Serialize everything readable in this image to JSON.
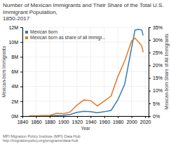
{
  "chart_data": {
    "type": "line",
    "title": "Number of Mexican Immigrants and Their Share of the Total U.S. Immigrant Population,\n1850-2017",
    "xlabel": "Year",
    "ylabel": "Mexican-born Immigrants",
    "y2label": "Mexican-born Share of All Immigrants",
    "annotations": [
      "MPI  Migration Policy Institute (MPI) Data Hub",
      "http://migrationpolicy.org/programs/data-hub"
    ],
    "x": [
      1850,
      1860,
      1870,
      1880,
      1890,
      1900,
      1910,
      1920,
      1930,
      1940,
      1950,
      1960,
      1970,
      1980,
      1990,
      2000,
      2005,
      2010,
      2015,
      2017
    ],
    "series": [
      {
        "name": "Mexican born",
        "color": "#3B78B0",
        "values": [
          0.01,
          0.01,
          0.01,
          0.02,
          0.08,
          0.1,
          0.22,
          0.49,
          0.64,
          0.58,
          0.45,
          0.58,
          0.76,
          2.2,
          4.3,
          9.18,
          11.6,
          11.71,
          11.64,
          10.9
        ]
      },
      {
        "name": "Mexican born as share of all immigr...",
        "color": "#E07B2A",
        "axis": "y2",
        "values": [
          0.1,
          0.1,
          0.2,
          0.3,
          1.1,
          0.9,
          1.6,
          4.3,
          6.3,
          6.1,
          4.0,
          5.9,
          7.9,
          15.6,
          21.7,
          29.5,
          30.7,
          29.3,
          27.7,
          25.2
        ]
      }
    ],
    "xlim": [
      1840,
      2025
    ],
    "xticks": [
      1840,
      1860,
      1880,
      1900,
      1920,
      1940,
      1960,
      1980,
      2000,
      2020
    ],
    "ylim": [
      0,
      12
    ],
    "yticks": [
      {
        "value": 0,
        "label": "0M"
      },
      {
        "value": 2,
        "label": "2M"
      },
      {
        "value": 4,
        "label": "4M"
      },
      {
        "value": 6,
        "label": "6M"
      },
      {
        "value": 8,
        "label": "8M"
      },
      {
        "value": 10,
        "label": "10M"
      },
      {
        "value": 12,
        "label": "12M"
      }
    ],
    "y2lim": [
      0,
      35
    ],
    "y2ticks": [
      {
        "value": 0,
        "label": "0%"
      },
      {
        "value": 5,
        "label": "5%"
      },
      {
        "value": 10,
        "label": "10%"
      },
      {
        "value": 15,
        "label": "15%"
      },
      {
        "value": 20,
        "label": "20%"
      },
      {
        "value": 25,
        "label": "25%"
      },
      {
        "value": 30,
        "label": "30%"
      },
      {
        "value": 35,
        "label": "35%"
      }
    ],
    "grid": true,
    "legend": "upper left"
  }
}
